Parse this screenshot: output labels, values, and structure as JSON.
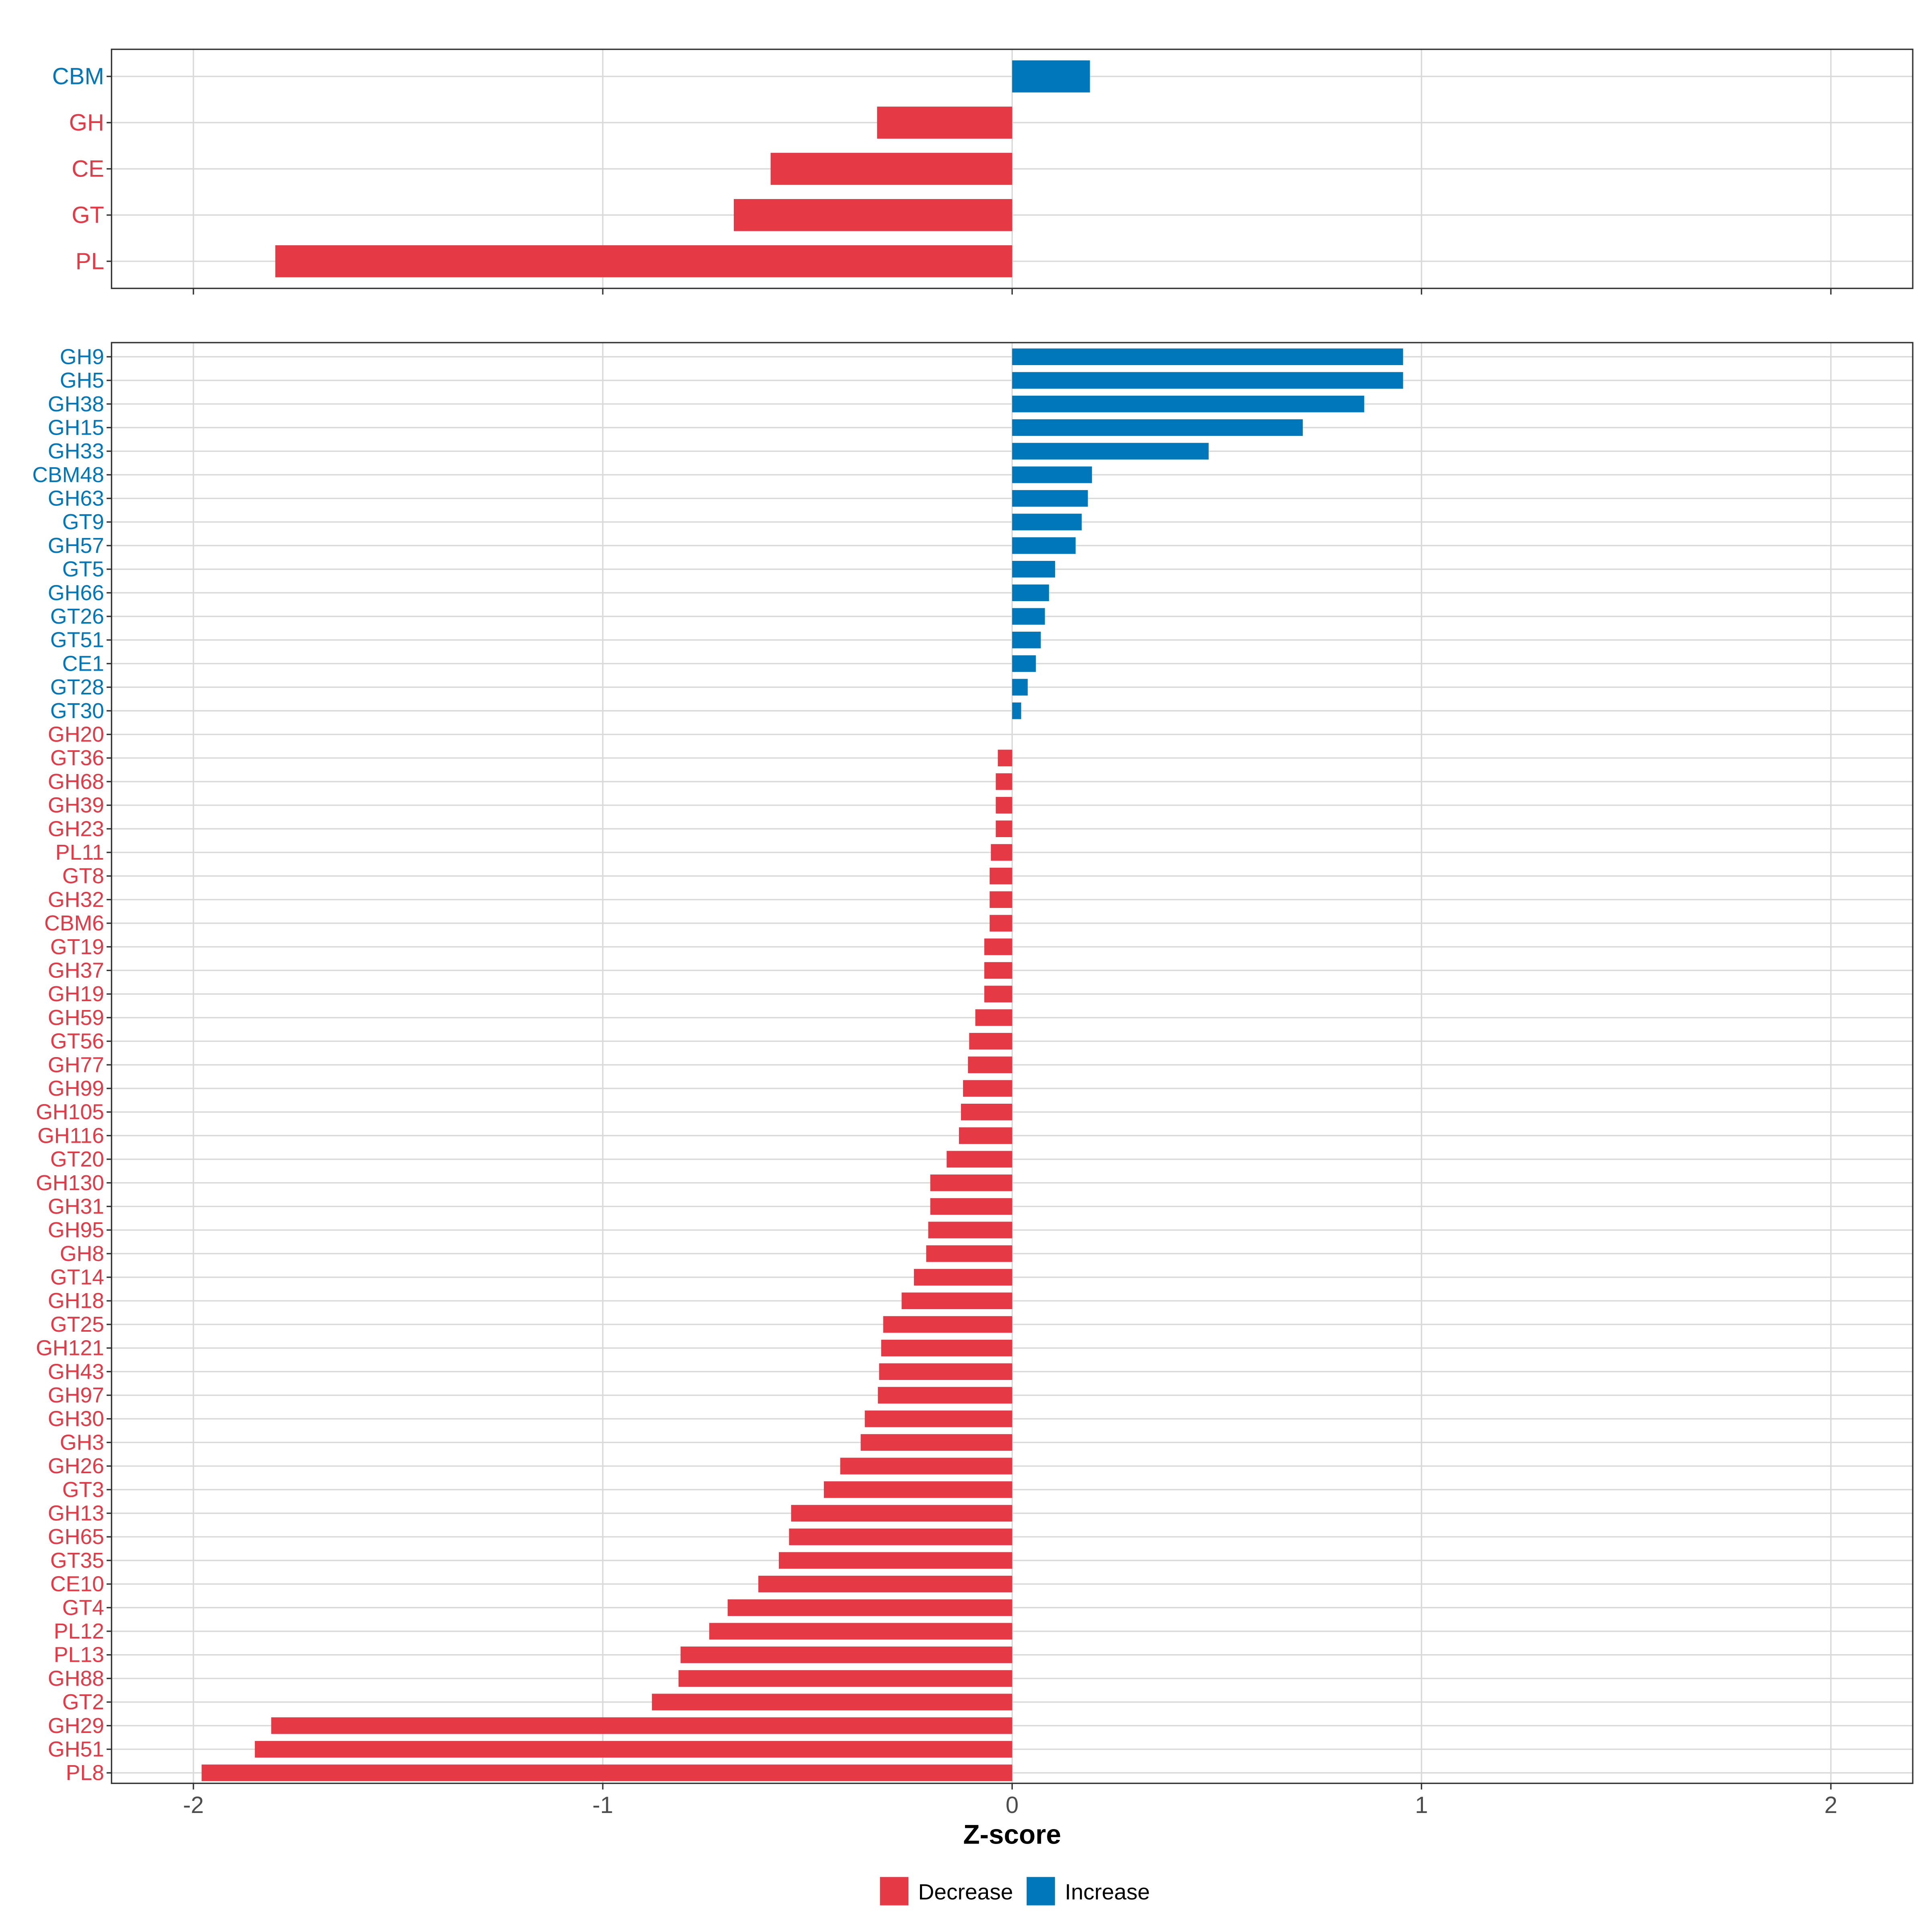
{
  "colors": {
    "decrease": "#E63946",
    "increase": "#0077BB",
    "grid": "#D9D9D9",
    "frame": "#333333"
  },
  "chart_data": [
    {
      "type": "bar",
      "orientation": "horizontal",
      "panel": "top",
      "categories": [
        "CBM",
        "GH",
        "CE",
        "GT",
        "PL"
      ],
      "values": [
        0.19,
        -0.33,
        -0.59,
        -0.68,
        -1.8
      ],
      "direction": [
        "Increase",
        "Decrease",
        "Decrease",
        "Decrease",
        "Decrease"
      ],
      "xlim": [
        -2.2,
        2.2
      ],
      "xticks": [
        "-2",
        "-1",
        "0",
        "1",
        "2"
      ],
      "grid": true
    },
    {
      "type": "bar",
      "orientation": "horizontal",
      "panel": "bottom",
      "categories": [
        "GH9",
        "GH5",
        "GH38",
        "GH15",
        "GH33",
        "CBM48",
        "GH63",
        "GT9",
        "GH57",
        "GT5",
        "GH66",
        "GT26",
        "GT51",
        "CE1",
        "GT28",
        "GT30",
        "GH20",
        "GT36",
        "GH68",
        "GH39",
        "GH23",
        "PL11",
        "GT8",
        "GH32",
        "CBM6",
        "GT19",
        "GH37",
        "GH19",
        "GH59",
        "GT56",
        "GH77",
        "GH99",
        "GH105",
        "GH116",
        "GT20",
        "GH130",
        "GH31",
        "GH95",
        "GH8",
        "GT14",
        "GH18",
        "GT25",
        "GH121",
        "GH43",
        "GH97",
        "GH30",
        "GH3",
        "GH26",
        "GT3",
        "GH13",
        "GH65",
        "GT35",
        "CE10",
        "GT4",
        "PL12",
        "PL13",
        "GH88",
        "GT2",
        "GH29",
        "GH51",
        "PL8"
      ],
      "values": [
        0.955,
        0.955,
        0.86,
        0.71,
        0.48,
        0.195,
        0.185,
        0.17,
        0.155,
        0.105,
        0.09,
        0.08,
        0.07,
        0.058,
        0.038,
        0.022,
        0.0,
        -0.035,
        -0.04,
        -0.04,
        -0.04,
        -0.052,
        -0.055,
        -0.055,
        -0.055,
        -0.068,
        -0.068,
        -0.068,
        -0.09,
        -0.105,
        -0.108,
        -0.12,
        -0.125,
        -0.13,
        -0.16,
        -0.2,
        -0.2,
        -0.205,
        -0.21,
        -0.24,
        -0.27,
        -0.315,
        -0.32,
        -0.325,
        -0.328,
        -0.36,
        -0.37,
        -0.42,
        -0.46,
        -0.54,
        -0.545,
        -0.57,
        -0.62,
        -0.695,
        -0.74,
        -0.81,
        -0.815,
        -0.88,
        -1.81,
        -1.85,
        -1.98
      ],
      "direction": [
        "Increase",
        "Increase",
        "Increase",
        "Increase",
        "Increase",
        "Increase",
        "Increase",
        "Increase",
        "Increase",
        "Increase",
        "Increase",
        "Increase",
        "Increase",
        "Increase",
        "Increase",
        "Increase",
        "Decrease",
        "Decrease",
        "Decrease",
        "Decrease",
        "Decrease",
        "Decrease",
        "Decrease",
        "Decrease",
        "Decrease",
        "Decrease",
        "Decrease",
        "Decrease",
        "Decrease",
        "Decrease",
        "Decrease",
        "Decrease",
        "Decrease",
        "Decrease",
        "Decrease",
        "Decrease",
        "Decrease",
        "Decrease",
        "Decrease",
        "Decrease",
        "Decrease",
        "Decrease",
        "Decrease",
        "Decrease",
        "Decrease",
        "Decrease",
        "Decrease",
        "Decrease",
        "Decrease",
        "Decrease",
        "Decrease",
        "Decrease",
        "Decrease",
        "Decrease",
        "Decrease",
        "Decrease",
        "Decrease",
        "Decrease",
        "Decrease",
        "Decrease",
        "Decrease"
      ],
      "xlim": [
        -2.2,
        2.2
      ],
      "xticks": [
        "-2",
        "-1",
        "0",
        "1",
        "2"
      ],
      "xlabel": "Z-score",
      "grid": true
    }
  ],
  "legend": {
    "position": "bottom",
    "items": [
      {
        "label": "Decrease",
        "key": "decrease"
      },
      {
        "label": "Increase",
        "key": "increase"
      }
    ]
  }
}
